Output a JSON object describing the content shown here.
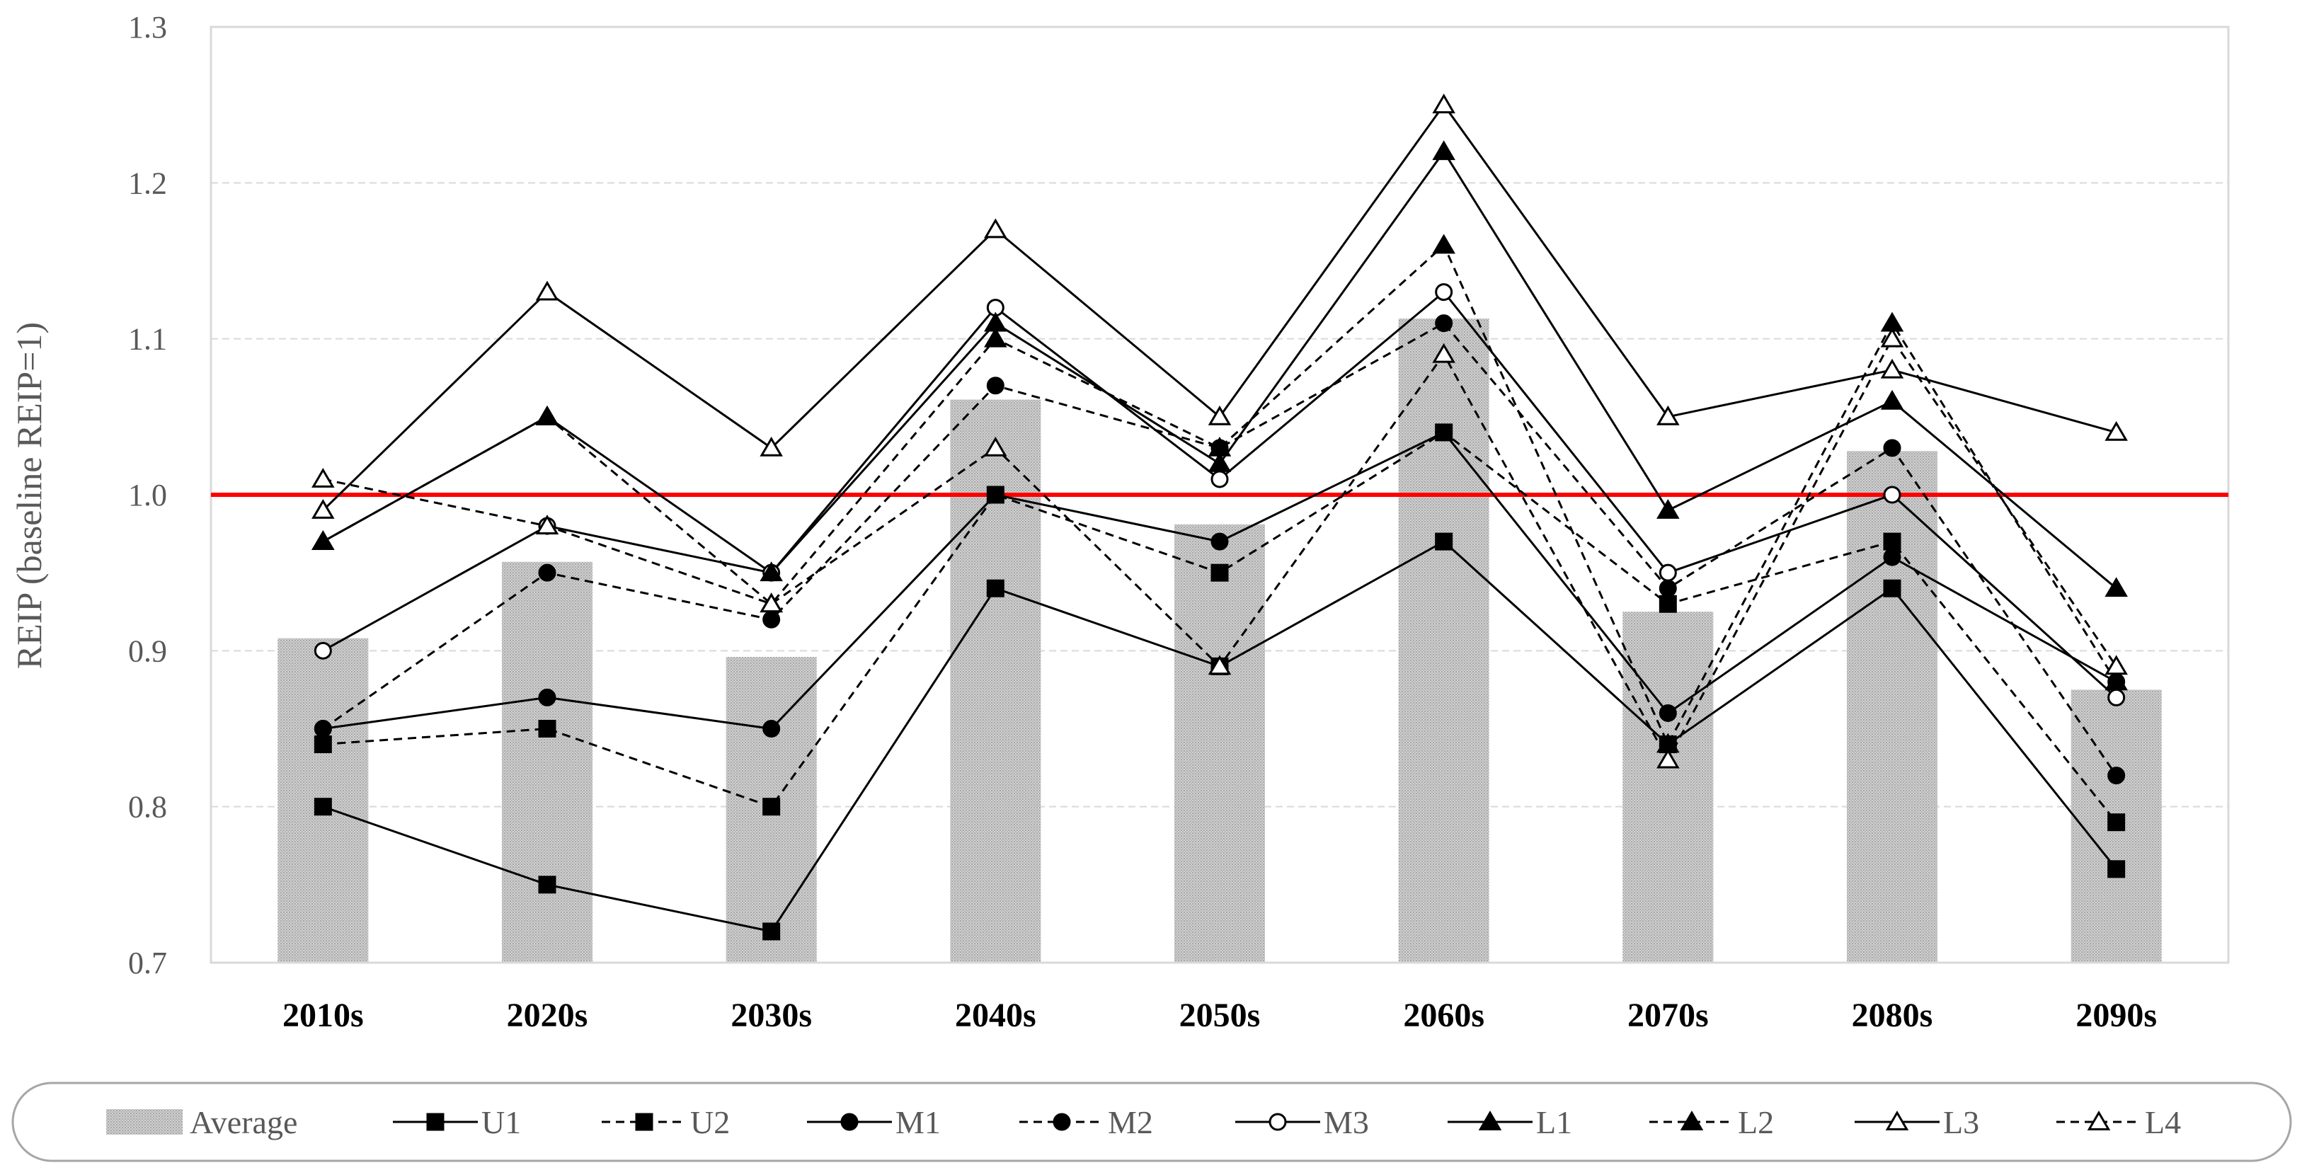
{
  "chart_data": {
    "type": "bar+line",
    "title": "",
    "xlabel": "",
    "ylabel": "REIP (baseline REIP=1)",
    "ylim": [
      0.7,
      1.3
    ],
    "yticks": [
      "0.7",
      "0.8",
      "0.9",
      "1.0",
      "1.1",
      "1.2",
      "1.3"
    ],
    "grid": true,
    "legend_position": "bottom",
    "categories": [
      "2010s",
      "2020s",
      "2030s",
      "2040s",
      "2050s",
      "2060s",
      "2070s",
      "2080s",
      "2090s"
    ],
    "reference_line": {
      "value": 1.0,
      "color": "#ff0000"
    },
    "bar_series": {
      "name": "Average",
      "values": [
        0.908,
        0.957,
        0.896,
        1.061,
        0.981,
        1.113,
        0.925,
        1.028,
        0.875
      ]
    },
    "series": [
      {
        "name": "U1",
        "dash": "solid",
        "marker": "square-filled",
        "values": [
          0.8,
          0.75,
          0.72,
          0.94,
          0.89,
          0.97,
          0.84,
          0.94,
          0.76
        ]
      },
      {
        "name": "U2",
        "dash": "dashed",
        "marker": "square-filled",
        "values": [
          0.84,
          0.85,
          0.8,
          1.0,
          0.95,
          1.04,
          0.93,
          0.97,
          0.79
        ]
      },
      {
        "name": "M1",
        "dash": "solid",
        "marker": "circle-filled",
        "values": [
          0.85,
          0.87,
          0.85,
          1.0,
          0.97,
          1.04,
          0.86,
          0.96,
          0.88
        ]
      },
      {
        "name": "M2",
        "dash": "dashed",
        "marker": "circle-filled",
        "values": [
          0.85,
          0.95,
          0.92,
          1.07,
          1.03,
          1.11,
          0.94,
          1.03,
          0.82
        ]
      },
      {
        "name": "M3",
        "dash": "solid",
        "marker": "circle-open",
        "values": [
          0.9,
          0.98,
          0.95,
          1.12,
          1.01,
          1.13,
          0.95,
          1.0,
          0.87
        ]
      },
      {
        "name": "L1",
        "dash": "solid",
        "marker": "triangle-filled",
        "values": [
          0.97,
          1.05,
          0.95,
          1.11,
          1.02,
          1.22,
          0.99,
          1.06,
          0.94
        ]
      },
      {
        "name": "L2",
        "dash": "dashed",
        "marker": "triangle-filled",
        "values": [
          0.97,
          1.05,
          0.93,
          1.1,
          1.03,
          1.16,
          0.84,
          1.11,
          0.88
        ]
      },
      {
        "name": "L3",
        "dash": "solid",
        "marker": "triangle-open",
        "values": [
          0.99,
          1.13,
          1.03,
          1.17,
          1.05,
          1.25,
          1.05,
          1.08,
          1.04
        ]
      },
      {
        "name": "L4",
        "dash": "dashed",
        "marker": "triangle-open",
        "values": [
          1.01,
          0.98,
          0.93,
          1.03,
          0.89,
          1.09,
          0.83,
          1.1,
          0.89
        ]
      }
    ],
    "colors": {
      "line": "#000000",
      "bar": "#bfbfbf",
      "grid": "#d9d9d9",
      "axis": "#d9d9d9",
      "legend_border": "#a6a6a6"
    }
  }
}
